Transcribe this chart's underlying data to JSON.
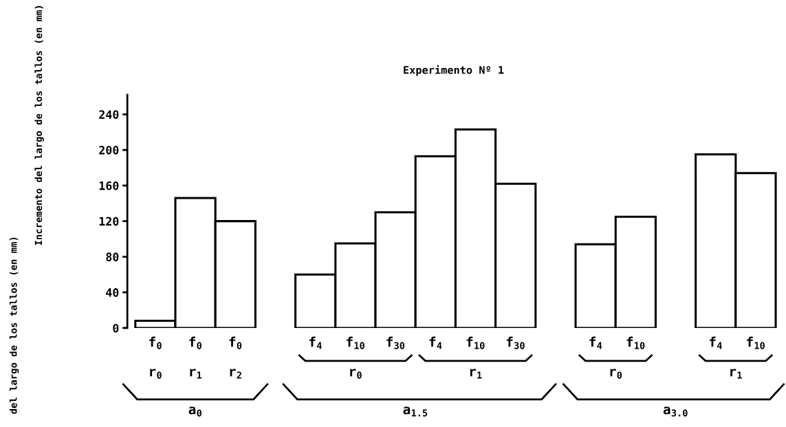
{
  "chart_data": {
    "type": "bar",
    "title": "Experimento Nº 1",
    "categories": [
      "f$_{0}$",
      "f$_{0}$",
      "f$_{0}$",
      null,
      "f$_{4}$",
      "f$_{10}$",
      "f$_{30}$",
      "f$_{4}$",
      "f$_{10}$",
      "f$_{30}$",
      null,
      "f$_{4}$",
      "f$_{10}$",
      null,
      "f$_{4}$",
      "f$_{10}$"
    ],
    "values": [
      8,
      146,
      120,
      null,
      60,
      95,
      130,
      193,
      223,
      162,
      null,
      94,
      125,
      null,
      195,
      174
    ],
    "color": "#ffffff",
    "ylim": [
      0,
      262
    ],
    "yticks": [
      0,
      40,
      80,
      120,
      160,
      200,
      240
    ],
    "grid": false,
    "annotations": [
      "r$_{0}$",
      "r$_{1}$",
      "r$_{2}$",
      "r$_{0}$",
      "r$_{1}$",
      "r$_{0}$",
      "r$_{1}$",
      "a$_{0}$",
      "a$_{1.5}$",
      "a$_{3.0}$",
      "Incremento del largo de los tallos (en mm)",
      "del largo de los tallos (en mm)"
    ]
  }
}
